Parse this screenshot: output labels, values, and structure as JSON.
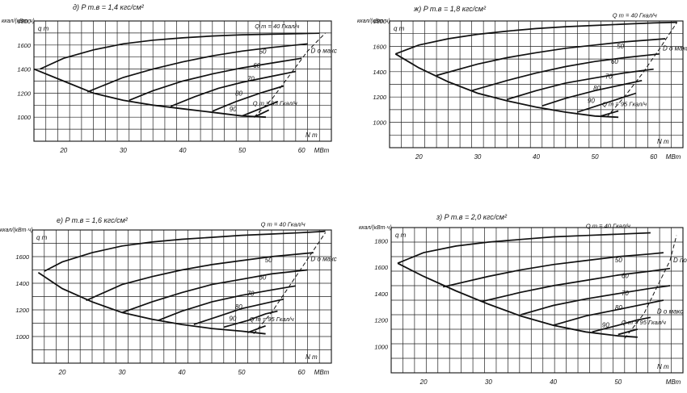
{
  "chart_data": [
    {
      "type": "line",
      "title": "д) P т.в = 1,4 кгс/см²",
      "ylabel": "ккал/(кВт·ч)",
      "y_symbol": "q т",
      "x_symbol": "N т",
      "x_unit": "МВт",
      "xlim": [
        15,
        65
      ],
      "ylim": [
        800,
        1800
      ],
      "x_ticks": [
        20,
        30,
        40,
        50,
        60
      ],
      "y_ticks": [
        1000,
        1200,
        1400,
        1600,
        1800
      ],
      "grid": true,
      "dmax_label": "D о макс",
      "series": [
        {
          "name": "Q т = 40 Гкал/ч",
          "x": [
            16,
            20,
            25,
            30,
            35,
            40,
            45,
            50,
            55,
            60,
            63
          ],
          "y": [
            1400,
            1490,
            1560,
            1610,
            1640,
            1660,
            1675,
            1685,
            1690,
            1695,
            1698
          ]
        },
        {
          "name": "50",
          "x": [
            24,
            30,
            35,
            40,
            45,
            50,
            55,
            61
          ],
          "y": [
            1210,
            1330,
            1400,
            1460,
            1510,
            1550,
            1580,
            1610
          ]
        },
        {
          "name": "60",
          "x": [
            31,
            35,
            40,
            45,
            50,
            55,
            60
          ],
          "y": [
            1140,
            1220,
            1300,
            1360,
            1410,
            1450,
            1490
          ]
        },
        {
          "name": "70",
          "x": [
            38,
            42,
            46,
            50,
            55,
            59
          ],
          "y": [
            1090,
            1170,
            1240,
            1290,
            1340,
            1380
          ]
        },
        {
          "name": "80",
          "x": [
            45,
            49,
            53,
            57
          ],
          "y": [
            1050,
            1130,
            1200,
            1260
          ]
        },
        {
          "name": "90",
          "x": [
            50,
            53,
            56
          ],
          "y": [
            1010,
            1070,
            1130
          ]
        },
        {
          "name": "Q т = 95 Гкал/ч",
          "x": [
            52,
            54.5
          ],
          "y": [
            1000,
            1060
          ]
        },
        {
          "name": "envelope",
          "x": [
            15,
            20,
            25,
            30,
            35,
            40,
            45,
            50,
            54
          ],
          "y": [
            1400,
            1300,
            1200,
            1140,
            1100,
            1070,
            1040,
            1010,
            1000
          ]
        },
        {
          "name": "D о макс",
          "x": [
            52,
            55,
            58,
            61,
            64
          ],
          "y": [
            1000,
            1150,
            1350,
            1550,
            1700
          ]
        }
      ],
      "labels": [
        "Q т = 40 Гкал/ч",
        "50",
        "60",
        "70",
        "80",
        "90",
        "Q т = 95 Гкал/ч"
      ]
    },
    {
      "type": "line",
      "title": "ж) P т.в = 1,8 кгс/см²",
      "ylabel": "ккал/(кВт·ч)",
      "y_symbol": "q т",
      "x_symbol": "N т",
      "x_unit": "МВт",
      "xlim": [
        15,
        65
      ],
      "ylim": [
        800,
        1800
      ],
      "x_ticks": [
        20,
        30,
        40,
        50,
        60
      ],
      "y_ticks": [
        1000,
        1200,
        1400,
        1600,
        1800
      ],
      "grid": true,
      "dmax_label": "D о макс",
      "series": [
        {
          "name": "Q т = 40 Гкал/ч",
          "x": [
            16,
            20,
            25,
            30,
            35,
            40,
            45,
            50,
            55,
            60,
            64
          ],
          "y": [
            1540,
            1610,
            1660,
            1695,
            1720,
            1740,
            1755,
            1765,
            1775,
            1785,
            1790
          ]
        },
        {
          "name": "50",
          "x": [
            23,
            30,
            35,
            40,
            45,
            50,
            55,
            62
          ],
          "y": [
            1370,
            1460,
            1510,
            1550,
            1585,
            1610,
            1635,
            1660
          ]
        },
        {
          "name": "60",
          "x": [
            29,
            35,
            40,
            45,
            50,
            55,
            61
          ],
          "y": [
            1250,
            1330,
            1390,
            1440,
            1480,
            1510,
            1540
          ]
        },
        {
          "name": "70",
          "x": [
            35,
            40,
            45,
            50,
            55,
            60
          ],
          "y": [
            1180,
            1250,
            1310,
            1350,
            1390,
            1420
          ]
        },
        {
          "name": "80",
          "x": [
            41,
            45,
            50,
            55,
            58
          ],
          "y": [
            1130,
            1190,
            1250,
            1300,
            1330
          ]
        },
        {
          "name": "90",
          "x": [
            47,
            51,
            55,
            57
          ],
          "y": [
            1080,
            1140,
            1200,
            1230
          ]
        },
        {
          "name": "Q т = 95 Гкал/ч",
          "x": [
            51,
            54
          ],
          "y": [
            1050,
            1090
          ]
        },
        {
          "name": "envelope",
          "x": [
            16,
            20,
            25,
            30,
            35,
            40,
            45,
            50,
            54
          ],
          "y": [
            1540,
            1430,
            1320,
            1230,
            1170,
            1120,
            1080,
            1050,
            1040
          ]
        },
        {
          "name": "D о макс",
          "x": [
            52,
            55,
            58,
            61,
            64
          ],
          "y": [
            1040,
            1200,
            1380,
            1580,
            1790
          ]
        }
      ],
      "labels": [
        "Q т = 40 Гкал/ч",
        "50",
        "60",
        "70",
        "80",
        "90",
        "Q т = 95 Гкал/ч"
      ]
    },
    {
      "type": "line",
      "title": "е) P т.в = 1,6 кгс/см²",
      "ylabel": "ккал/(кВт·ч)",
      "y_symbol": "q т",
      "x_symbol": "N т",
      "x_unit": "МВт",
      "xlim": [
        15,
        65
      ],
      "ylim": [
        800,
        1800
      ],
      "x_ticks": [
        20,
        30,
        40,
        50,
        60
      ],
      "y_ticks": [
        1000,
        1200,
        1400,
        1600
      ],
      "grid": true,
      "dmax_label": "D о макс",
      "series": [
        {
          "name": "Q т = 40 Гкал/ч",
          "x": [
            17,
            20,
            25,
            30,
            35,
            40,
            45,
            50,
            55,
            60,
            64
          ],
          "y": [
            1490,
            1560,
            1630,
            1680,
            1710,
            1730,
            1745,
            1760,
            1770,
            1780,
            1790
          ]
        },
        {
          "name": "50",
          "x": [
            24,
            30,
            35,
            40,
            45,
            50,
            55,
            62
          ],
          "y": [
            1270,
            1390,
            1450,
            1500,
            1540,
            1570,
            1600,
            1630
          ]
        },
        {
          "name": "60",
          "x": [
            30,
            35,
            40,
            45,
            50,
            55,
            61
          ],
          "y": [
            1180,
            1260,
            1330,
            1390,
            1430,
            1470,
            1500
          ]
        },
        {
          "name": "70",
          "x": [
            36,
            40,
            45,
            50,
            55,
            59
          ],
          "y": [
            1120,
            1190,
            1260,
            1310,
            1350,
            1380
          ]
        },
        {
          "name": "80",
          "x": [
            42,
            46,
            50,
            55,
            57
          ],
          "y": [
            1090,
            1150,
            1210,
            1260,
            1280
          ]
        },
        {
          "name": "90",
          "x": [
            47,
            51,
            54,
            56
          ],
          "y": [
            1070,
            1120,
            1170,
            1190
          ]
        },
        {
          "name": "Q т = 95 Гкал/ч",
          "x": [
            51,
            54
          ],
          "y": [
            1030,
            1080
          ]
        },
        {
          "name": "envelope",
          "x": [
            16,
            20,
            25,
            30,
            35,
            40,
            45,
            50,
            54
          ],
          "y": [
            1480,
            1360,
            1260,
            1180,
            1130,
            1090,
            1060,
            1040,
            1020
          ]
        },
        {
          "name": "D о макс",
          "x": [
            52,
            55,
            58,
            61,
            64
          ],
          "y": [
            1020,
            1180,
            1380,
            1580,
            1780
          ]
        }
      ],
      "labels": [
        "Q т = 40 Гкал/ч",
        "50",
        "60",
        "70",
        "80",
        "90",
        "Q т = 95 Гкал/ч"
      ]
    },
    {
      "type": "line",
      "title": "з) P т.в = 2,0 кгс/см²",
      "ylabel": "ккал/(кВт·ч)",
      "y_symbol": "q т",
      "x_symbol": "N т",
      "x_unit": "МВт",
      "xlim": [
        15,
        60
      ],
      "ylim": [
        800,
        1900
      ],
      "x_ticks": [
        20,
        30,
        40,
        50
      ],
      "y_ticks": [
        1000,
        1200,
        1400,
        1600,
        1800
      ],
      "grid": true,
      "dmax_label": "D по макс",
      "dmax_label_2": "D о макс",
      "series": [
        {
          "name": "Q т = 40 Гкал/ч",
          "x": [
            16,
            20,
            25,
            30,
            35,
            40,
            45,
            50,
            55
          ],
          "y": [
            1630,
            1710,
            1760,
            1790,
            1810,
            1830,
            1840,
            1850,
            1860
          ]
        },
        {
          "name": "50",
          "x": [
            23,
            30,
            35,
            40,
            45,
            50,
            55,
            57
          ],
          "y": [
            1450,
            1530,
            1580,
            1620,
            1650,
            1680,
            1700,
            1710
          ]
        },
        {
          "name": "60",
          "x": [
            29,
            35,
            40,
            45,
            50,
            55,
            58
          ],
          "y": [
            1340,
            1410,
            1460,
            1500,
            1540,
            1570,
            1590
          ]
        },
        {
          "name": "70",
          "x": [
            35,
            40,
            45,
            50,
            55,
            58
          ],
          "y": [
            1240,
            1310,
            1360,
            1400,
            1440,
            1460
          ]
        },
        {
          "name": "80",
          "x": [
            40,
            45,
            50,
            54,
            57
          ],
          "y": [
            1160,
            1230,
            1280,
            1320,
            1350
          ]
        },
        {
          "name": "90",
          "x": [
            46,
            50,
            53,
            55
          ],
          "y": [
            1110,
            1160,
            1200,
            1220
          ]
        },
        {
          "name": "Q т = 95 Гкал/ч",
          "x": [
            50,
            53
          ],
          "y": [
            1090,
            1130
          ]
        },
        {
          "name": "envelope",
          "x": [
            16,
            20,
            25,
            30,
            35,
            40,
            45,
            50,
            53
          ],
          "y": [
            1630,
            1530,
            1420,
            1320,
            1230,
            1160,
            1110,
            1080,
            1070
          ]
        },
        {
          "name": "D по макс",
          "x": [
            51,
            54,
            56,
            58,
            59
          ],
          "y": [
            1060,
            1250,
            1450,
            1650,
            1840
          ]
        }
      ],
      "labels": [
        "Q т = 40 Гкал/ч",
        "50",
        "60",
        "70",
        "80",
        "90",
        "Q т = 95 Гкал/ч"
      ]
    }
  ]
}
